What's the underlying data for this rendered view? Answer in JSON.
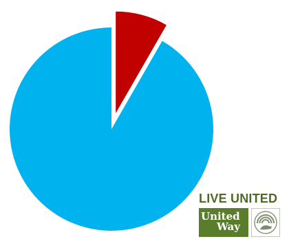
{
  "chart_data": {
    "type": "pie",
    "exploded_index": 1,
    "slices": [
      {
        "value": 91.7,
        "color": "#00b2ee"
      },
      {
        "value": 8.3,
        "color": "#c10000"
      }
    ]
  },
  "logo": {
    "tagline": "LIVE UNITED",
    "word1": "United",
    "word2": "Way",
    "symbol_icon": "united-way-hand-rainbow-icon",
    "colors": {
      "tagline": "#4f6a28",
      "box": "#5a7d2c"
    }
  }
}
